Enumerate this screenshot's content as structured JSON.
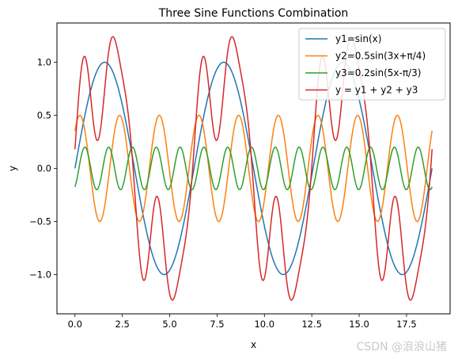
{
  "watermark": "CSDN @浪浪山猪",
  "chart_data": {
    "type": "line",
    "title": "Three Sine Functions Combination",
    "xlabel": "x",
    "ylabel": "y",
    "xlim": [
      -0.95,
      19.8
    ],
    "ylim": [
      -1.37,
      1.37
    ],
    "xticks": [
      0.0,
      2.5,
      5.0,
      7.5,
      10.0,
      12.5,
      15.0,
      17.5
    ],
    "xtick_labels": [
      "0.0",
      "2.5",
      "5.0",
      "7.5",
      "10.0",
      "12.5",
      "15.0",
      "17.5"
    ],
    "yticks": [
      -1.0,
      -0.5,
      0.0,
      0.5,
      1.0
    ],
    "ytick_labels": [
      "−1.0",
      "−0.5",
      "0.0",
      "0.5",
      "1.0"
    ],
    "grid": false,
    "legend_position": "top-right",
    "x_range": [
      0,
      18.85
    ],
    "series": [
      {
        "name": "y1=sin(x)",
        "color": "#1f77b4",
        "formula": {
          "terms": [
            {
              "a": 1.0,
              "k": 1,
              "phase": 0
            }
          ]
        }
      },
      {
        "name": "y2=0.5sin(3x+π/4)",
        "color": "#ff7f0e",
        "formula": {
          "terms": [
            {
              "a": 0.5,
              "k": 3,
              "phase": 0.7853981634
            }
          ]
        }
      },
      {
        "name": "y3=0.2sin(5x-π/3)",
        "color": "#2ca02c",
        "formula": {
          "terms": [
            {
              "a": 0.2,
              "k": 5,
              "phase": -1.0471975512
            }
          ]
        }
      },
      {
        "name": "y = y1 + y2 + y3",
        "color": "#d62728",
        "formula": {
          "terms": [
            {
              "a": 1.0,
              "k": 1,
              "phase": 0
            },
            {
              "a": 0.5,
              "k": 3,
              "phase": 0.7853981634
            },
            {
              "a": 0.2,
              "k": 5,
              "phase": -1.0471975512
            }
          ]
        }
      }
    ]
  }
}
